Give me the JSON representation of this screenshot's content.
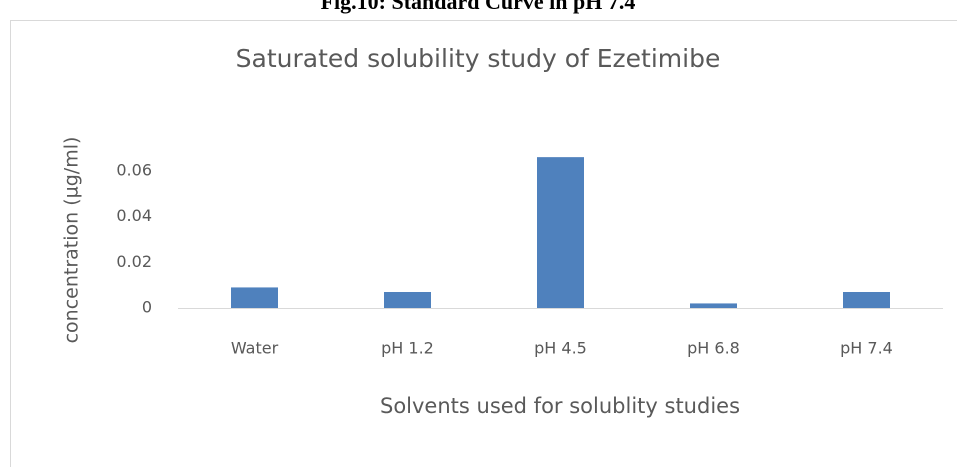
{
  "caption": "Fig.10: Standard Curve in pH 7.4",
  "chart_data": {
    "type": "bar",
    "title": "Saturated solubility study of Ezetimibe",
    "x_label": "Solvents used for solublity studies",
    "y_label": "concentration (µg/ml)",
    "categories": [
      "Water",
      "pH 1.2",
      "pH 4.5",
      "pH 6.8",
      "pH 7.4"
    ],
    "values": [
      0.009,
      0.007,
      0.066,
      0.002,
      0.007
    ],
    "color": "#4f81bd",
    "ylim": [
      0,
      0.07
    ],
    "yticks": [
      0,
      0.02,
      0.04,
      0.06
    ],
    "grid": false
  }
}
